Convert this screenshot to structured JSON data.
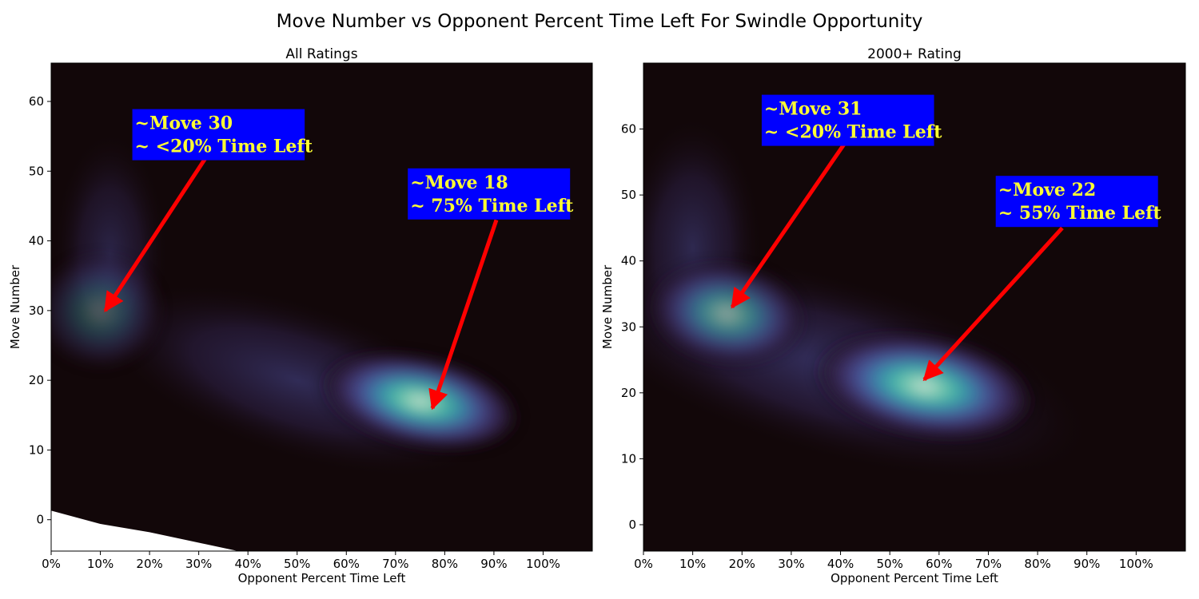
{
  "figure": {
    "title": "Move Number vs Opponent Percent Time Left For Swindle Opportunity"
  },
  "palette": {
    "background": "#120709",
    "density_stops": [
      "#120709",
      "#2b1a36",
      "#40336b",
      "#4a5aa0",
      "#3f8fb4",
      "#46c0b2",
      "#8ee0c0",
      "#e6f8ea"
    ],
    "annotation_box": "#0000ff",
    "annotation_text": "#ffff33",
    "arrow": "#ff0000"
  },
  "chart_data": [
    {
      "type": "heatmap",
      "subtype": "kde-density",
      "title": "All Ratings",
      "xlabel": "Opponent Percent Time Left",
      "ylabel": "Move Number",
      "xlim": [
        0,
        1.1
      ],
      "ylim": [
        -4.5,
        65.5
      ],
      "xticks": [
        0,
        0.1,
        0.2,
        0.3,
        0.4,
        0.5,
        0.6,
        0.7,
        0.8,
        0.9,
        1.0
      ],
      "xtick_labels": [
        "0%",
        "10%",
        "20%",
        "30%",
        "40%",
        "50%",
        "60%",
        "70%",
        "80%",
        "90%",
        "100%"
      ],
      "yticks": [
        0,
        10,
        20,
        30,
        40,
        50,
        60
      ],
      "ytick_labels": [
        "0",
        "10",
        "20",
        "30",
        "40",
        "50",
        "60"
      ],
      "density_peaks": [
        {
          "x": 0.1,
          "y": 30,
          "level": 0.35
        },
        {
          "x": 0.75,
          "y": 17,
          "level": 1.0
        }
      ],
      "blank_region_below": [
        [
          0,
          1.3
        ],
        [
          0.1,
          -0.6
        ],
        [
          0.2,
          -1.8
        ],
        [
          0.3,
          -3.3
        ],
        [
          0.38,
          -4.5
        ]
      ],
      "annotations": [
        {
          "lines": [
            "~Move 30",
            "~ <20% Time Left"
          ],
          "box_anchor": [
            0.165,
            58.9
          ],
          "arrow_tail": [
            0.315,
            52
          ],
          "arrow_head": [
            0.11,
            30
          ]
        },
        {
          "lines": [
            "~Move 18",
            "~ 75% Time Left"
          ],
          "box_anchor": [
            0.725,
            50.4
          ],
          "arrow_tail": [
            0.905,
            43
          ],
          "arrow_head": [
            0.775,
            16
          ]
        }
      ]
    },
    {
      "type": "heatmap",
      "subtype": "kde-density",
      "title": "2000+ Rating",
      "xlabel": "Opponent Percent Time Left",
      "ylabel": "Move Number",
      "xlim": [
        0,
        1.1
      ],
      "ylim": [
        -4,
        70
      ],
      "xticks": [
        0,
        0.1,
        0.2,
        0.3,
        0.4,
        0.5,
        0.6,
        0.7,
        0.8,
        0.9,
        1.0
      ],
      "xtick_labels": [
        "0%",
        "10%",
        "20%",
        "30%",
        "40%",
        "50%",
        "60%",
        "70%",
        "80%",
        "90%",
        "100%"
      ],
      "yticks": [
        0,
        10,
        20,
        30,
        40,
        50,
        60
      ],
      "ytick_labels": [
        "0",
        "10",
        "20",
        "30",
        "40",
        "50",
        "60"
      ],
      "density_peaks": [
        {
          "x": 0.17,
          "y": 32,
          "level": 0.7
        },
        {
          "x": 0.57,
          "y": 21,
          "level": 1.0
        }
      ],
      "annotations": [
        {
          "lines": [
            "~Move 31",
            "~ <20% Time Left"
          ],
          "box_anchor": [
            0.24,
            65.2
          ],
          "arrow_tail": [
            0.41,
            58
          ],
          "arrow_head": [
            0.18,
            33
          ]
        },
        {
          "lines": [
            "~Move 22",
            "~ 55% Time Left"
          ],
          "box_anchor": [
            0.715,
            52.9
          ],
          "arrow_tail": [
            0.85,
            45
          ],
          "arrow_head": [
            0.57,
            22
          ]
        }
      ]
    }
  ]
}
